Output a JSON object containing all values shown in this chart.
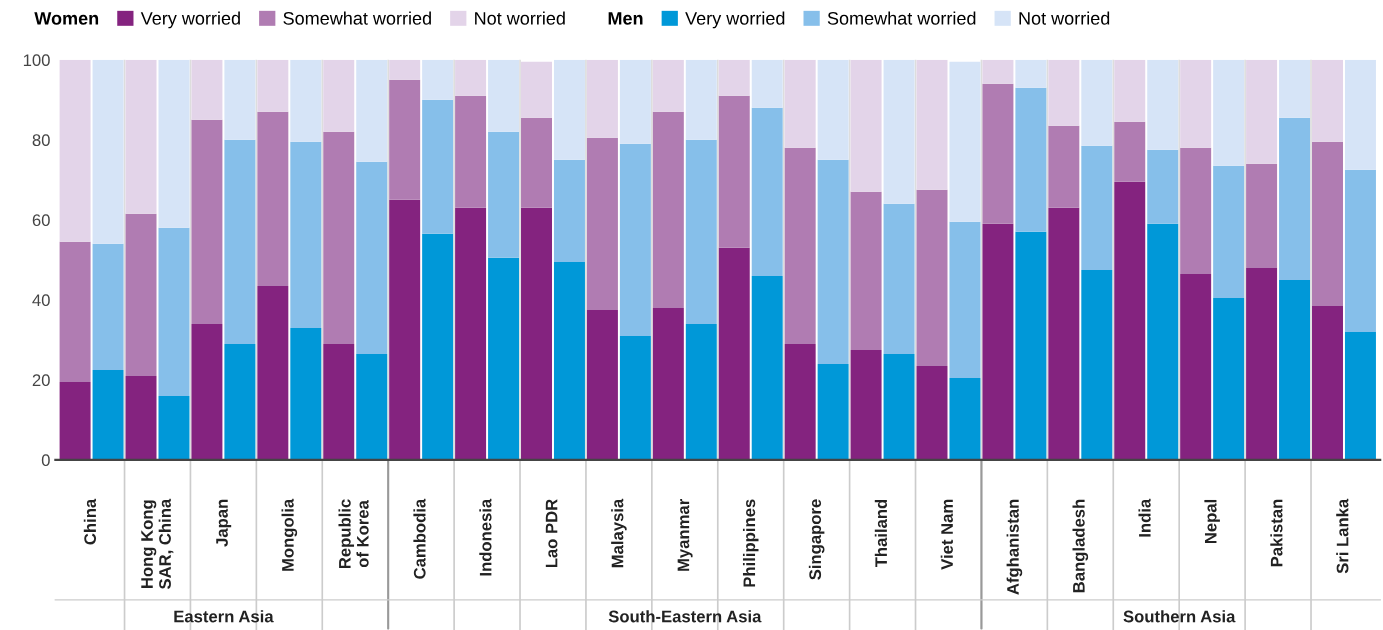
{
  "chart_data": {
    "type": "bar",
    "stacked": true,
    "categories": [
      "China",
      null,
      "Hong Kong SAR, China",
      null,
      "Japan",
      null,
      "Mongolia",
      null,
      "Republic of Korea",
      null,
      "Cambodia",
      null,
      "Indonesia",
      null,
      "Lao PDR",
      null,
      "Malaysia",
      null,
      "Myanmar",
      null,
      "Philippines",
      null,
      "Singapore",
      null,
      "Thailand",
      null,
      "Viet Nam",
      null,
      "Afghanistan",
      null,
      "Bangladesh",
      null,
      "India",
      null,
      "Nepal",
      null,
      "Pakistan",
      null,
      "Sri Lanka",
      null
    ],
    "series": [
      {
        "name": "Very worried",
        "color": "#84237f",
        "values": [
          19.5,
          null,
          21,
          null,
          34,
          null,
          43.5,
          null,
          29,
          null,
          65,
          null,
          63,
          null,
          63,
          null,
          37.5,
          null,
          38,
          null,
          53,
          null,
          29,
          null,
          27.5,
          null,
          23.5,
          null,
          59,
          null,
          63,
          null,
          69.5,
          null,
          46.5,
          null,
          48,
          null,
          38.5,
          null
        ]
      },
      {
        "name": "Somewhat worried",
        "color": "#b07cb2",
        "values": [
          35,
          null,
          40.5,
          null,
          51,
          null,
          43.5,
          null,
          53,
          null,
          30,
          null,
          28,
          null,
          22.5,
          null,
          43,
          null,
          49,
          null,
          38,
          null,
          49,
          null,
          39.5,
          null,
          44,
          null,
          35,
          null,
          20.5,
          null,
          15,
          null,
          31.5,
          null,
          26,
          null,
          41,
          null
        ]
      },
      {
        "name": "Not worried",
        "color": "#e3d4e9",
        "values": [
          45.5,
          null,
          38.5,
          null,
          15,
          null,
          13,
          null,
          18,
          null,
          5,
          null,
          9,
          null,
          14,
          null,
          19.5,
          null,
          13,
          null,
          9,
          null,
          22,
          null,
          33,
          null,
          32.5,
          null,
          6,
          null,
          16.5,
          null,
          15.5,
          null,
          22,
          null,
          26,
          null,
          20.5,
          null
        ]
      },
      {
        "name": "Very worried",
        "color": "#0098d8",
        "values": [
          null,
          22.5,
          null,
          16,
          null,
          29,
          null,
          33,
          null,
          26.5,
          null,
          56.5,
          null,
          50.5,
          null,
          49.5,
          null,
          31,
          null,
          34,
          null,
          46,
          null,
          24,
          null,
          26.5,
          null,
          20.5,
          null,
          57,
          null,
          47.5,
          null,
          59,
          null,
          40.5,
          null,
          45,
          null,
          32
        ]
      },
      {
        "name": "Somewhat worried",
        "color": "#86bfea",
        "values": [
          null,
          31.5,
          null,
          42,
          null,
          51,
          null,
          46.5,
          null,
          48,
          null,
          33.5,
          null,
          31.5,
          null,
          25.5,
          null,
          48,
          null,
          46,
          null,
          42,
          null,
          51,
          null,
          37.5,
          null,
          39,
          null,
          36,
          null,
          31,
          null,
          18.5,
          null,
          33,
          null,
          40.5,
          null,
          40.5
        ]
      },
      {
        "name": "Not worried",
        "color": "#d6e4f7",
        "values": [
          null,
          46,
          null,
          42,
          null,
          20,
          null,
          20.5,
          null,
          25.5,
          null,
          10,
          null,
          18,
          null,
          25,
          null,
          21,
          null,
          20,
          null,
          12,
          null,
          25,
          null,
          36,
          null,
          40,
          null,
          7,
          null,
          21.5,
          null,
          22.5,
          null,
          26.5,
          null,
          14.5,
          null,
          27.5
        ]
      }
    ],
    "ylim": [
      0,
      100
    ],
    "yticks": [
      0,
      20,
      40,
      60,
      80,
      100
    ],
    "grid": "x",
    "legend": "top",
    "annotations": [
      "Women",
      "Men",
      "Eastern Asia",
      "South-Eastern Asia",
      "Southern Asia"
    ]
  }
}
